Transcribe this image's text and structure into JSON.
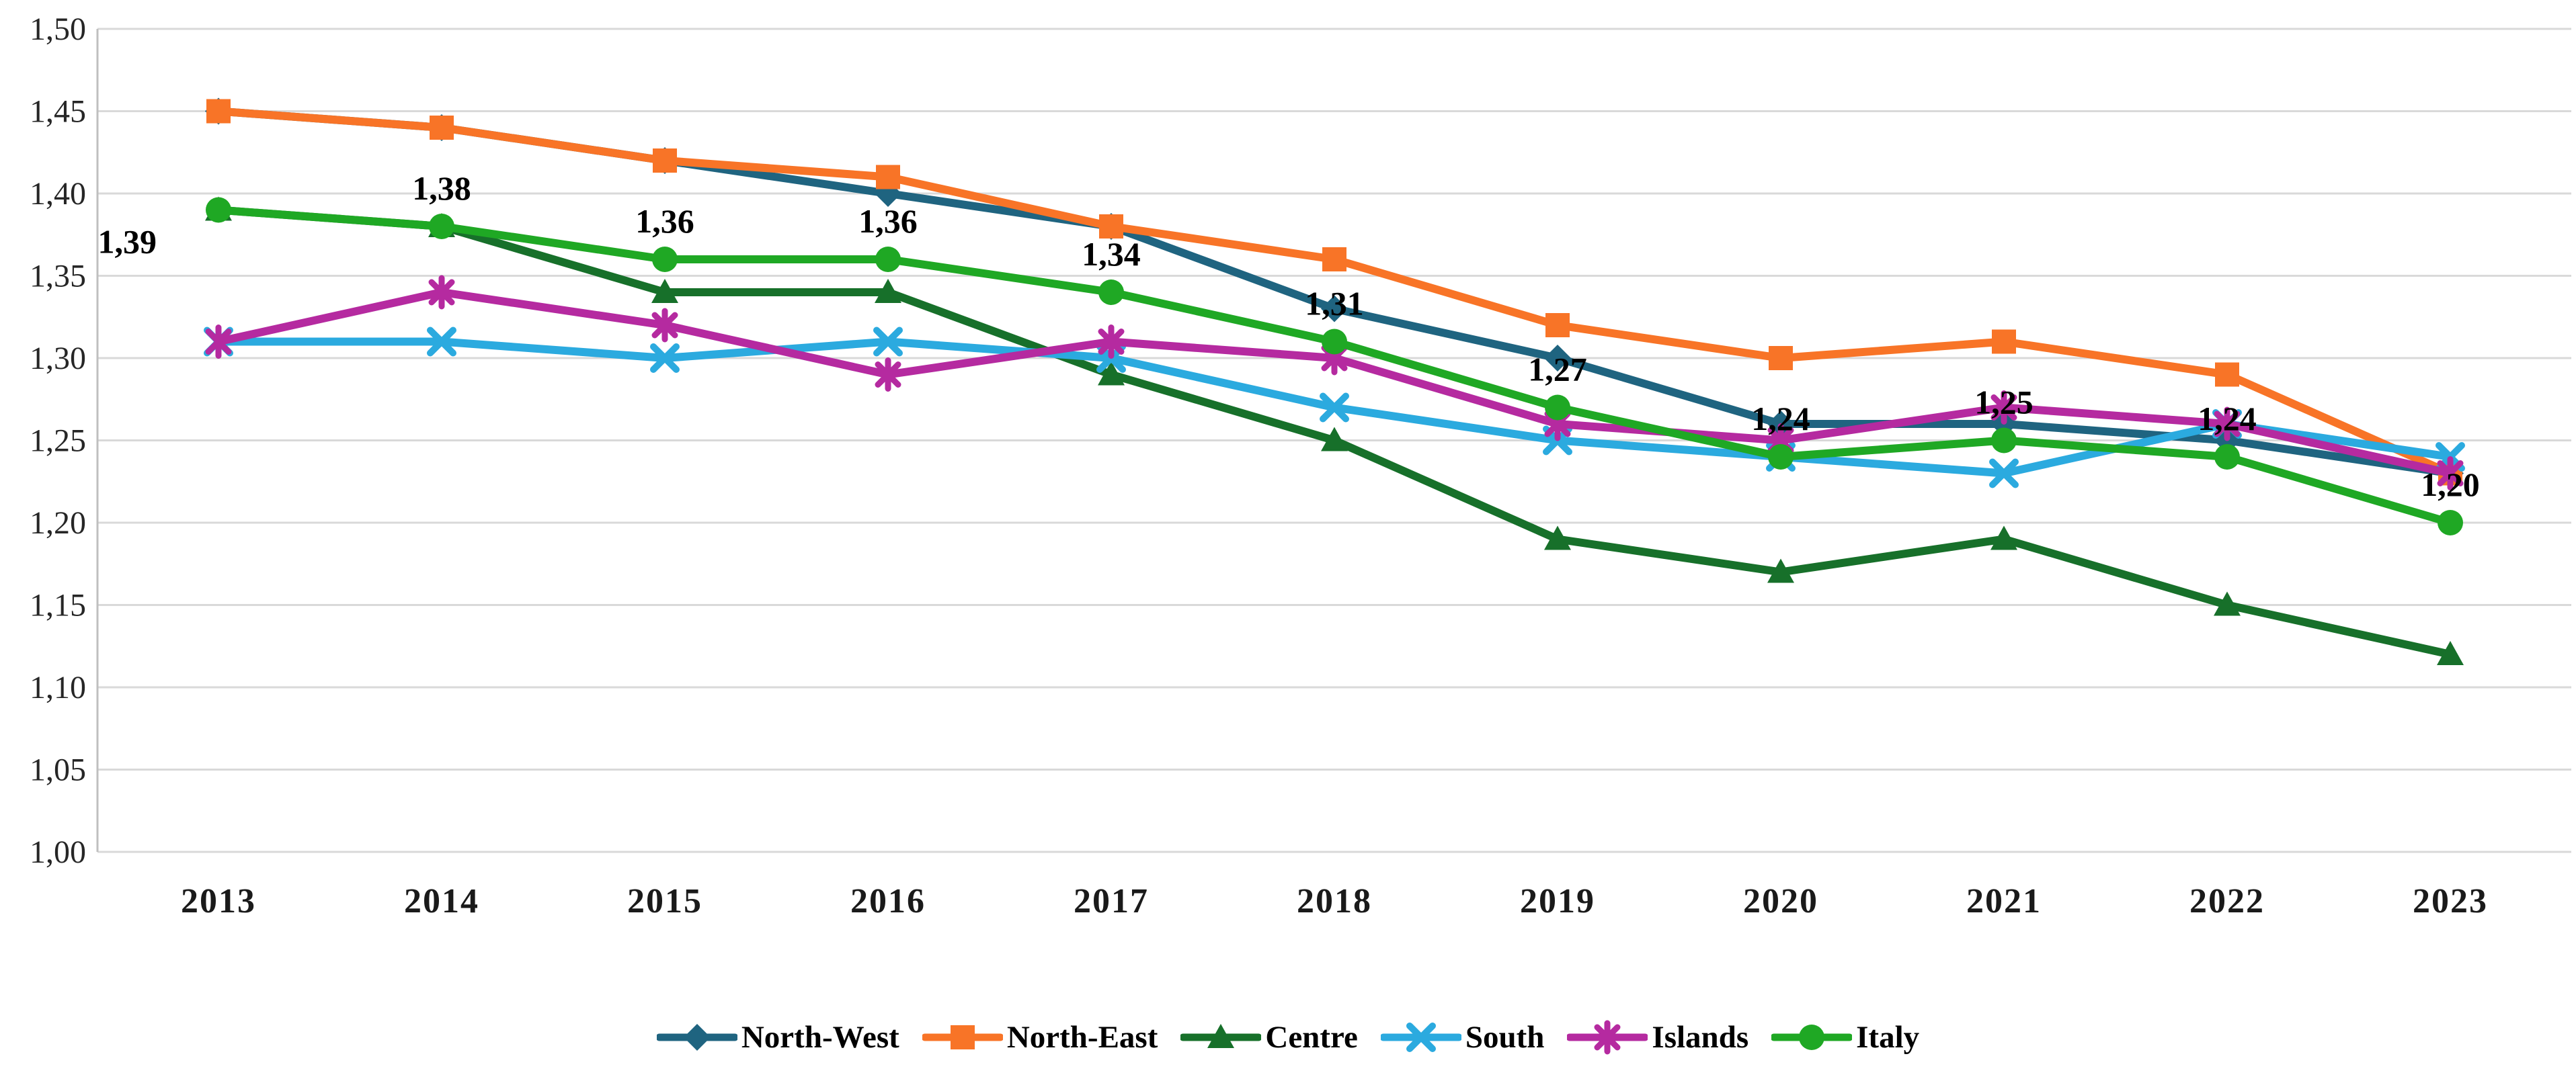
{
  "chart_data": {
    "type": "line",
    "title": "",
    "xlabel": "",
    "ylabel": "",
    "categories": [
      "2013",
      "2014",
      "2015",
      "2016",
      "2017",
      "2018",
      "2019",
      "2020",
      "2021",
      "2022",
      "2023"
    ],
    "series": [
      {
        "name": "North-West",
        "marker": "diamond",
        "color": "#1F6480",
        "values": [
          1.45,
          1.44,
          1.42,
          1.4,
          1.38,
          1.33,
          1.3,
          1.26,
          1.26,
          1.25,
          1.23
        ]
      },
      {
        "name": "North-East",
        "marker": "square",
        "color": "#F87427",
        "values": [
          1.45,
          1.44,
          1.42,
          1.41,
          1.38,
          1.36,
          1.32,
          1.3,
          1.31,
          1.29,
          1.23
        ]
      },
      {
        "name": "Centre",
        "marker": "triangle",
        "color": "#17702A",
        "values": [
          1.39,
          1.38,
          1.34,
          1.34,
          1.29,
          1.25,
          1.19,
          1.17,
          1.19,
          1.15,
          1.12
        ]
      },
      {
        "name": "South",
        "marker": "x",
        "color": "#2BAADF",
        "values": [
          1.31,
          1.31,
          1.3,
          1.31,
          1.3,
          1.27,
          1.25,
          1.24,
          1.23,
          1.26,
          1.24
        ]
      },
      {
        "name": "Islands",
        "marker": "star",
        "color": "#B52AA0",
        "values": [
          1.31,
          1.34,
          1.32,
          1.29,
          1.31,
          1.3,
          1.26,
          1.25,
          1.27,
          1.26,
          1.23
        ]
      },
      {
        "name": "Italy",
        "marker": "circle",
        "color": "#1FA824",
        "values": [
          1.39,
          1.38,
          1.36,
          1.36,
          1.34,
          1.31,
          1.27,
          1.24,
          1.25,
          1.24,
          1.2
        ]
      }
    ],
    "labeled_series": "Italy",
    "value_labels": [
      "1,39",
      "1,38",
      "1,36",
      "1,36",
      "1,34",
      "1,31",
      "1,27",
      "1,24",
      "1,25",
      "1,24",
      "1,20"
    ],
    "y_axis": {
      "min": 1.0,
      "max": 1.5,
      "step": 0.05,
      "tick_labels": [
        "1,50",
        "1,45",
        "1,40",
        "1,35",
        "1,30",
        "1,25",
        "1,20",
        "1,15",
        "1,10",
        "1,05",
        "1,00"
      ]
    },
    "grid": true,
    "gridline_color": "#D9D9D9",
    "axis_line_color": "#BFBFBF",
    "tick_label_color": "#262626",
    "data_label_color": "#000000",
    "legend_position": "bottom"
  }
}
